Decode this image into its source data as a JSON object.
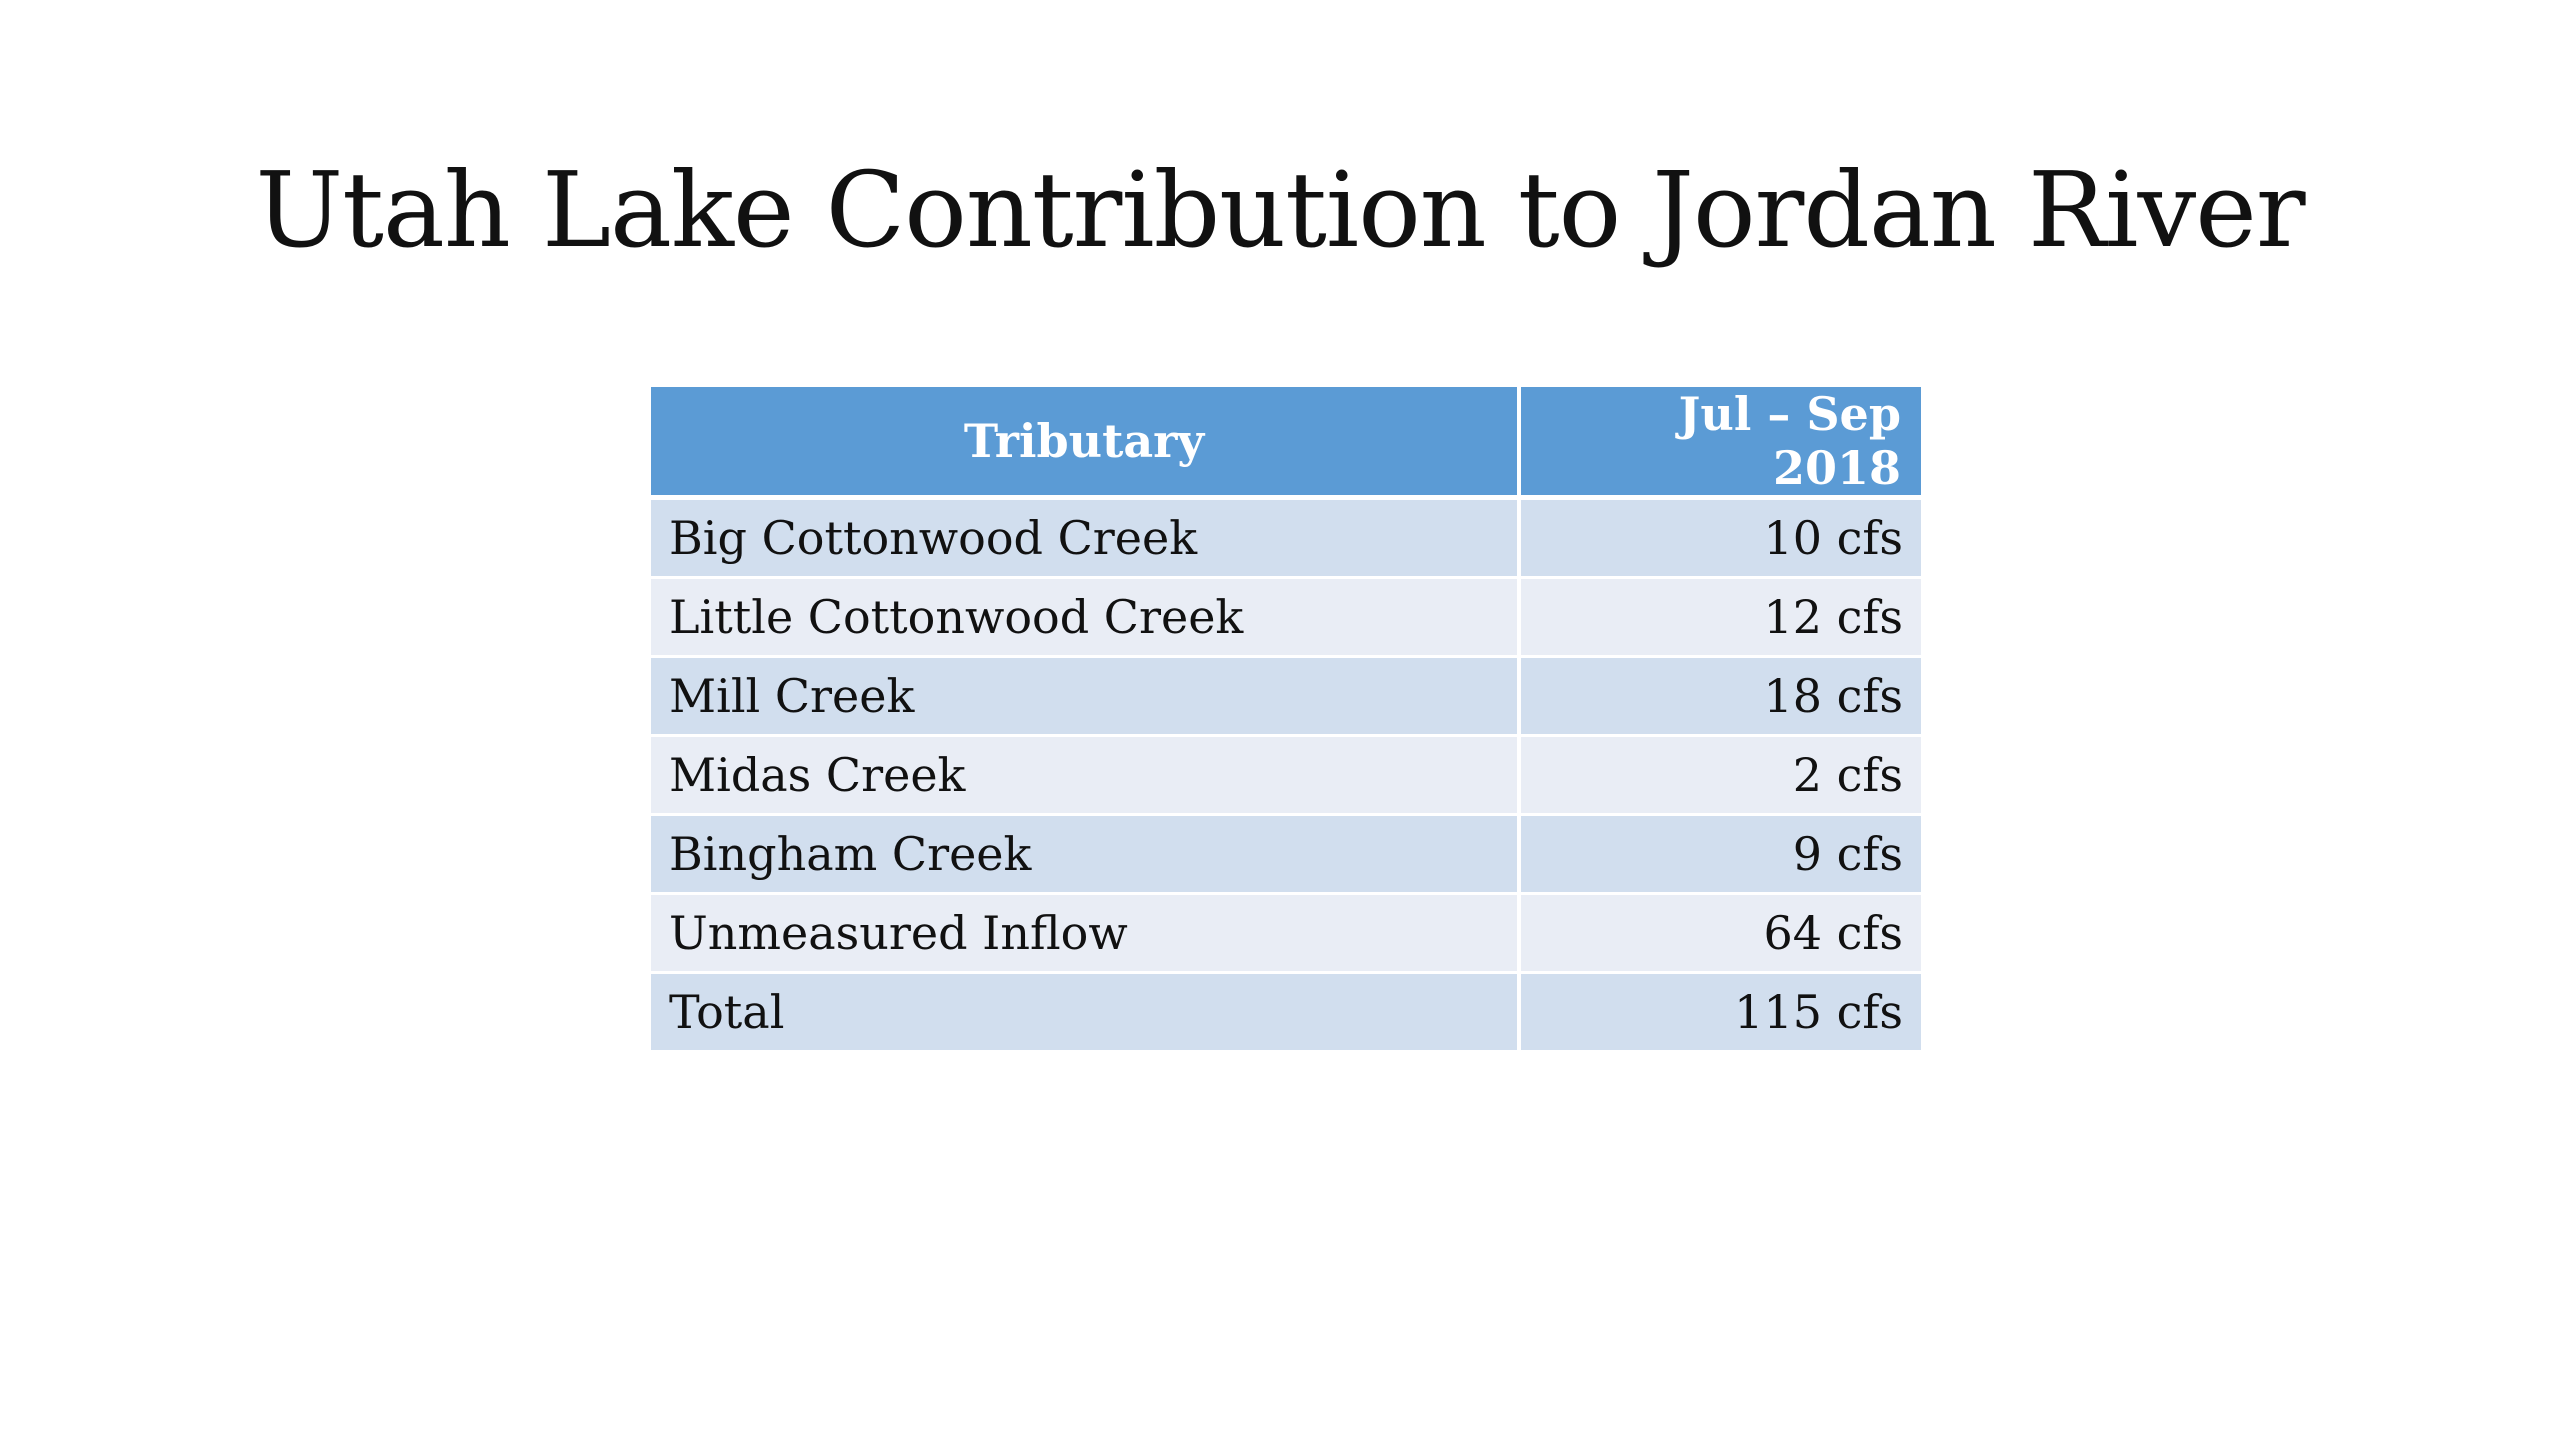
{
  "slide": {
    "title": "Utah Lake Contribution to Jordan River"
  },
  "table": {
    "headers": [
      "Tributary",
      "Jul – Sep 2018"
    ],
    "rows": [
      {
        "tributary": "Big Cottonwood Creek",
        "flow": "10 cfs"
      },
      {
        "tributary": "Little Cottonwood Creek",
        "flow": "12 cfs"
      },
      {
        "tributary": "Mill Creek",
        "flow": "18 cfs"
      },
      {
        "tributary": "Midas Creek",
        "flow": "2 cfs"
      },
      {
        "tributary": "Bingham Creek",
        "flow": "9 cfs"
      },
      {
        "tributary": "Unmeasured Inflow",
        "flow": "64 cfs"
      },
      {
        "tributary": "Total",
        "flow": "115 cfs"
      }
    ]
  },
  "colors": {
    "header_bg": "#5b9bd5",
    "row_odd_bg": "#d1deee",
    "row_even_bg": "#e9edf5"
  }
}
